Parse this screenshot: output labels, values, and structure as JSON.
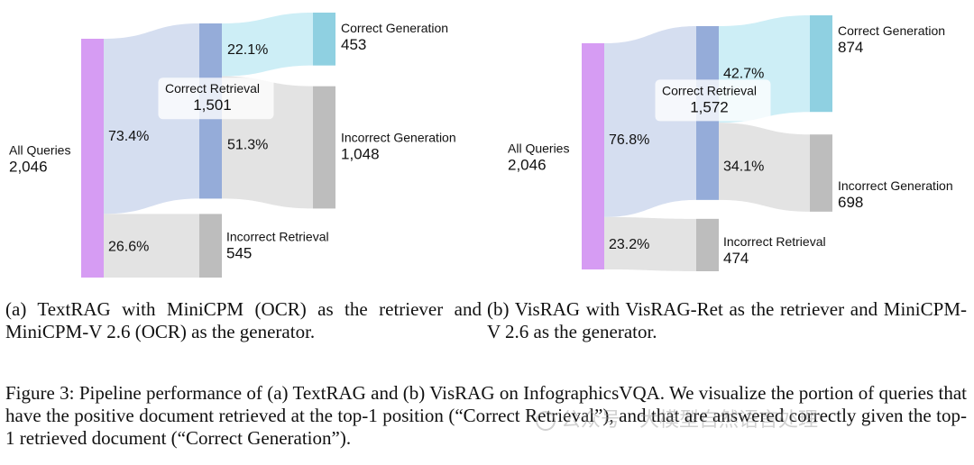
{
  "chart_data": [
    {
      "type": "sankey",
      "id": "a",
      "nodes": [
        {
          "key": "all",
          "name": "All Queries",
          "value": 2046,
          "display": "2,046",
          "color": "#d69cf3"
        },
        {
          "key": "cr",
          "name": "Correct Retrieval",
          "value": 1501,
          "display": "1,501",
          "color": "#95acd9"
        },
        {
          "key": "ir",
          "name": "Incorrect Retrieval",
          "value": 545,
          "display": "545",
          "color": "#bdbdbd"
        },
        {
          "key": "cg",
          "name": "Correct Generation",
          "value": 453,
          "display": "453",
          "color": "#8fd0e1"
        },
        {
          "key": "ig",
          "name": "Incorrect Generation",
          "value": 1048,
          "display": "1,048",
          "color": "#bdbdbd"
        }
      ],
      "links": [
        {
          "source": "all",
          "target": "cr",
          "value": 1501,
          "pct": "73.4%",
          "color": "#d5def0"
        },
        {
          "source": "all",
          "target": "ir",
          "value": 545,
          "pct": "26.6%",
          "color": "#e3e3e3"
        },
        {
          "source": "cr",
          "target": "cg",
          "value": 453,
          "pct": "22.1%",
          "color": "#cdeef6"
        },
        {
          "source": "cr",
          "target": "ig",
          "value": 1048,
          "pct": "51.3%",
          "color": "#e3e3e3"
        }
      ]
    },
    {
      "type": "sankey",
      "id": "b",
      "nodes": [
        {
          "key": "all",
          "name": "All Queries",
          "value": 2046,
          "display": "2,046",
          "color": "#d69cf3"
        },
        {
          "key": "cr",
          "name": "Correct Retrieval",
          "value": 1572,
          "display": "1,572",
          "color": "#95acd9"
        },
        {
          "key": "ir",
          "name": "Incorrect Retrieval",
          "value": 474,
          "display": "474",
          "color": "#bdbdbd"
        },
        {
          "key": "cg",
          "name": "Correct Generation",
          "value": 874,
          "display": "874",
          "color": "#8fd0e1"
        },
        {
          "key": "ig",
          "name": "Incorrect Generation",
          "value": 698,
          "display": "698",
          "color": "#bdbdbd"
        }
      ],
      "links": [
        {
          "source": "all",
          "target": "cr",
          "value": 1572,
          "pct": "76.8%",
          "color": "#d5def0"
        },
        {
          "source": "all",
          "target": "ir",
          "value": 474,
          "pct": "23.2%",
          "color": "#e3e3e3"
        },
        {
          "source": "cr",
          "target": "cg",
          "value": 874,
          "pct": "42.7%",
          "color": "#cdeef6"
        },
        {
          "source": "cr",
          "target": "ig",
          "value": 698,
          "pct": "34.1%",
          "color": "#e3e3e3"
        }
      ]
    }
  ],
  "captions": {
    "a": "(a) TextRAG with MiniCPM (OCR) as the retriever and MiniCPM-V 2.6 (OCR) as the generator.",
    "b": "(b) VisRAG with VisRAG-Ret as the retriever and MiniCPM-V 2.6 as the generator.",
    "figure": "Figure 3: Pipeline performance of (a) TextRAG and (b) VisRAG on InfographicsVQA. We visualize the portion of queries that have the positive document retrieved at the top-1 position (“Correct Retrieval”), and that are answered correctly given the top-1 retrieved document (“Correct Generation”)."
  },
  "watermark": "公众号 · 大模型自然语言处理"
}
